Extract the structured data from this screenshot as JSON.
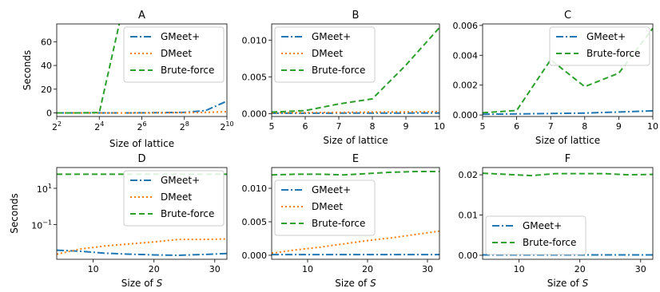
{
  "colors": {
    "gmeet": "#1f77b4",
    "dmeet": "#ff7f0e",
    "brute": "#2ca02c"
  },
  "chart_data": [
    {
      "panel": "A",
      "title": "A",
      "type": "line",
      "xlabel": "Size of lattice",
      "ylabel": "Seconds",
      "xscale": "log2",
      "xlim": [
        4,
        1024
      ],
      "ylim": [
        -3,
        75
      ],
      "xticks": [
        {
          "v": 4,
          "b": "2",
          "e": "2"
        },
        {
          "v": 16,
          "b": "2",
          "e": "4"
        },
        {
          "v": 64,
          "b": "2",
          "e": "6"
        },
        {
          "v": 256,
          "b": "2",
          "e": "8"
        },
        {
          "v": 1024,
          "b": "2",
          "e": "10"
        }
      ],
      "yticks": [
        {
          "v": 0,
          "t": "0"
        },
        {
          "v": 20,
          "t": "20"
        },
        {
          "v": 40,
          "t": "40"
        },
        {
          "v": 60,
          "t": "60"
        }
      ],
      "legend": "top-right",
      "series": [
        {
          "name": "GMeet+",
          "key": "gmeet",
          "x": [
            4,
            8,
            16,
            32,
            64,
            128,
            256,
            512,
            1024
          ],
          "y": [
            0,
            0,
            0,
            0,
            0.1,
            0.2,
            0.5,
            2,
            10
          ]
        },
        {
          "name": "DMeet",
          "key": "dmeet",
          "x": [
            4,
            8,
            16,
            32,
            64,
            128,
            256,
            512,
            1024
          ],
          "y": [
            0,
            0,
            0,
            0,
            0,
            0.1,
            0.2,
            0.5,
            1
          ]
        },
        {
          "name": "Brute-force",
          "key": "brute",
          "x": [
            4,
            8,
            16,
            32
          ],
          "y": [
            0,
            0,
            0.3,
            80
          ]
        }
      ]
    },
    {
      "panel": "B",
      "title": "B",
      "type": "line",
      "xlabel": "Size of lattice",
      "ylabel": "",
      "xscale": "linear",
      "xlim": [
        5,
        10
      ],
      "ylim": [
        -0.0004,
        0.0122
      ],
      "xticks": [
        {
          "v": 5,
          "t": "5"
        },
        {
          "v": 6,
          "t": "6"
        },
        {
          "v": 7,
          "t": "7"
        },
        {
          "v": 8,
          "t": "8"
        },
        {
          "v": 9,
          "t": "9"
        },
        {
          "v": 10,
          "t": "10"
        }
      ],
      "yticks": [
        {
          "v": 0,
          "t": "0.000"
        },
        {
          "v": 0.005,
          "t": "0.005"
        },
        {
          "v": 0.01,
          "t": "0.010"
        }
      ],
      "legend": "top-left",
      "series": [
        {
          "name": "GMeet+",
          "key": "gmeet",
          "x": [
            5,
            6,
            7,
            8,
            9,
            10
          ],
          "y": [
            5e-05,
            5e-05,
            6e-05,
            6e-05,
            7e-05,
            8e-05
          ]
        },
        {
          "name": "DMeet",
          "key": "dmeet",
          "x": [
            5,
            6,
            7,
            8,
            9,
            10
          ],
          "y": [
            0.0001,
            0.00012,
            0.00015,
            0.0002,
            0.00022,
            0.00025
          ]
        },
        {
          "name": "Brute-force",
          "key": "brute",
          "x": [
            5,
            6,
            7,
            8,
            9,
            10
          ],
          "y": [
            0.0002,
            0.0004,
            0.0013,
            0.002,
            0.0066,
            0.0117
          ]
        }
      ]
    },
    {
      "panel": "C",
      "title": "C",
      "type": "line",
      "xlabel": "Size of lattice",
      "ylabel": "",
      "xscale": "linear",
      "xlim": [
        5,
        10
      ],
      "ylim": [
        -0.0001,
        0.0061
      ],
      "xticks": [
        {
          "v": 5,
          "t": "5"
        },
        {
          "v": 6,
          "t": "6"
        },
        {
          "v": 7,
          "t": "7"
        },
        {
          "v": 8,
          "t": "8"
        },
        {
          "v": 9,
          "t": "9"
        },
        {
          "v": 10,
          "t": "10"
        }
      ],
      "yticks": [
        {
          "v": 0,
          "t": "0.000"
        },
        {
          "v": 0.002,
          "t": "0.002"
        },
        {
          "v": 0.004,
          "t": "0.004"
        },
        {
          "v": 0.006,
          "t": "0.006"
        }
      ],
      "legend": "top-right",
      "series": [
        {
          "name": "GMeet+",
          "key": "gmeet",
          "x": [
            5,
            6,
            7,
            8,
            9,
            10
          ],
          "y": [
            5e-05,
            7e-05,
            0.0001,
            0.00013,
            0.0002,
            0.00028
          ]
        },
        {
          "name": "Brute-force",
          "key": "brute",
          "x": [
            5,
            6,
            7,
            8,
            9,
            10
          ],
          "y": [
            0.00015,
            0.0003,
            0.0037,
            0.0019,
            0.0028,
            0.0058
          ]
        }
      ]
    },
    {
      "panel": "D",
      "title": "D",
      "type": "line",
      "xlabel": "Size of S",
      "ylabel": "Seconds",
      "xscale": "linear",
      "yscale": "log",
      "xlim": [
        4,
        32
      ],
      "ylim": [
        0.0012,
        140
      ],
      "xticks": [
        {
          "v": 10,
          "t": "10"
        },
        {
          "v": 20,
          "t": "20"
        },
        {
          "v": 30,
          "t": "30"
        }
      ],
      "yticks": [
        {
          "v": 0.1,
          "b": "10",
          "e": "−1"
        },
        {
          "v": 10,
          "b": "10",
          "e": "1"
        }
      ],
      "legend": "top-right",
      "series": [
        {
          "name": "GMeet+",
          "key": "gmeet",
          "x": [
            4,
            8,
            12,
            16,
            20,
            24,
            28,
            32
          ],
          "y": [
            0.0038,
            0.0033,
            0.0026,
            0.0023,
            0.0021,
            0.002,
            0.0022,
            0.0025
          ]
        },
        {
          "name": "DMeet",
          "key": "dmeet",
          "x": [
            4,
            8,
            12,
            16,
            20,
            24,
            28,
            32
          ],
          "y": [
            0.0023,
            0.0045,
            0.0065,
            0.0085,
            0.011,
            0.015,
            0.015,
            0.016
          ]
        },
        {
          "name": "Brute-force",
          "key": "brute",
          "x": [
            4,
            8,
            12,
            16,
            20,
            24,
            28,
            32
          ],
          "y": [
            60,
            60,
            60,
            60,
            60,
            60,
            60,
            60
          ]
        }
      ]
    },
    {
      "panel": "E",
      "title": "E",
      "type": "line",
      "xlabel": "Size of S",
      "ylabel": "",
      "xscale": "linear",
      "xlim": [
        4,
        32
      ],
      "ylim": [
        -0.0006,
        0.0131
      ],
      "xticks": [
        {
          "v": 10,
          "t": "10"
        },
        {
          "v": 20,
          "t": "20"
        },
        {
          "v": 30,
          "t": "30"
        }
      ],
      "yticks": [
        {
          "v": 0,
          "t": "0.000"
        },
        {
          "v": 0.005,
          "t": "0.005"
        },
        {
          "v": 0.01,
          "t": "0.010"
        }
      ],
      "legend": "left",
      "series": [
        {
          "name": "GMeet+",
          "key": "gmeet",
          "x": [
            4,
            8,
            12,
            16,
            20,
            24,
            28,
            32
          ],
          "y": [
            0.0001,
            0.0001,
            0.0001,
            0.0001,
            0.0001,
            0.0001,
            0.0001,
            0.0001
          ]
        },
        {
          "name": "DMeet",
          "key": "dmeet",
          "x": [
            4,
            8,
            12,
            16,
            20,
            24,
            28,
            32
          ],
          "y": [
            0.0003,
            0.0008,
            0.0012,
            0.0017,
            0.0022,
            0.0026,
            0.0031,
            0.0036
          ]
        },
        {
          "name": "Brute-force",
          "key": "brute",
          "x": [
            4,
            8,
            12,
            16,
            20,
            24,
            28,
            32
          ],
          "y": [
            0.012,
            0.0121,
            0.0121,
            0.012,
            0.0122,
            0.0124,
            0.0125,
            0.0125
          ]
        }
      ]
    },
    {
      "panel": "F",
      "title": "F",
      "type": "line",
      "xlabel": "Size of S",
      "ylabel": "",
      "xscale": "linear",
      "xlim": [
        4,
        32
      ],
      "ylim": [
        -0.001,
        0.0218
      ],
      "xticks": [
        {
          "v": 10,
          "t": "10"
        },
        {
          "v": 20,
          "t": "20"
        },
        {
          "v": 30,
          "t": "30"
        }
      ],
      "yticks": [
        {
          "v": 0,
          "t": "0.00"
        },
        {
          "v": 0.01,
          "t": "0.01"
        },
        {
          "v": 0.02,
          "t": "0.02"
        }
      ],
      "legend": "bottom-left",
      "series": [
        {
          "name": "GMeet+",
          "key": "gmeet",
          "x": [
            4,
            8,
            12,
            16,
            20,
            24,
            28,
            32
          ],
          "y": [
            0.0001,
            0.0001,
            0.0001,
            0.0001,
            0.0001,
            0.0001,
            0.0001,
            0.0001
          ]
        },
        {
          "name": "Brute-force",
          "key": "brute",
          "x": [
            4,
            8,
            12,
            16,
            20,
            24,
            28,
            32
          ],
          "y": [
            0.0204,
            0.0201,
            0.0198,
            0.0203,
            0.0203,
            0.0203,
            0.02,
            0.0201
          ]
        }
      ]
    }
  ]
}
